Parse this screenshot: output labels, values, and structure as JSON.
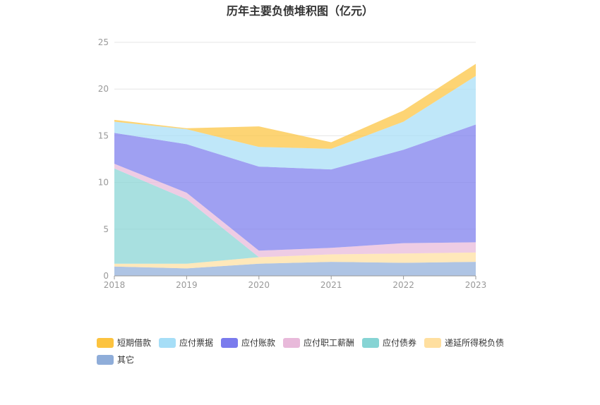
{
  "chart_data": {
    "type": "area",
    "stacked": true,
    "title": "历年主要负债堆积图（亿元）",
    "xlabel": "",
    "ylabel": "",
    "x": [
      "2018",
      "2019",
      "2020",
      "2021",
      "2022",
      "2023"
    ],
    "ylim": [
      0,
      25
    ],
    "yticks": [
      0,
      5,
      10,
      15,
      20,
      25
    ],
    "grid": true,
    "legend_position": "bottom-left",
    "series": [
      {
        "name": "其它",
        "color": "#8fadd9",
        "values": [
          1.0,
          0.8,
          1.3,
          1.5,
          1.4,
          1.5
        ]
      },
      {
        "name": "递延所得税负债",
        "color": "#ffdf9f",
        "values": [
          0.3,
          0.5,
          0.7,
          0.8,
          1.0,
          1.0
        ]
      },
      {
        "name": "应付债券",
        "color": "#86d4d4",
        "values": [
          10.2,
          6.9,
          0.0,
          0.0,
          0.0,
          0.0
        ]
      },
      {
        "name": "应付职工薪酬",
        "color": "#e8b9da",
        "values": [
          0.5,
          0.7,
          0.7,
          0.7,
          1.1,
          1.1
        ]
      },
      {
        "name": "应付账款",
        "color": "#7a7bed",
        "values": [
          3.3,
          5.2,
          9.0,
          8.4,
          10.0,
          12.6
        ]
      },
      {
        "name": "应付票据",
        "color": "#a6def7",
        "values": [
          1.2,
          1.6,
          2.1,
          2.2,
          3.0,
          5.2
        ]
      },
      {
        "name": "短期借款",
        "color": "#fcc33f",
        "values": [
          0.2,
          0.1,
          2.2,
          0.7,
          1.2,
          1.3
        ]
      }
    ],
    "legend_order": [
      "短期借款",
      "应付票据",
      "应付账款",
      "应付职工薪酬",
      "应付债券",
      "递延所得税负债",
      "其它"
    ]
  }
}
